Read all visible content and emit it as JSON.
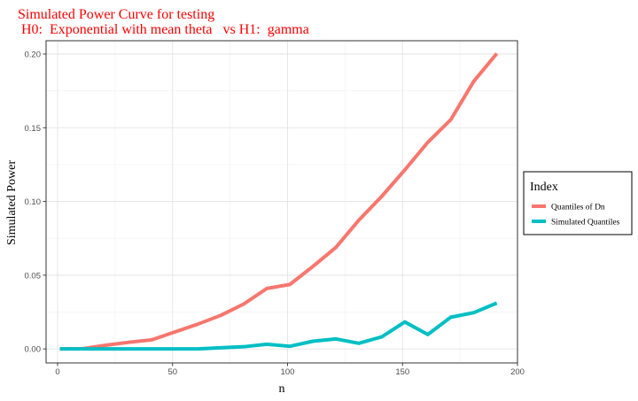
{
  "chart_data": {
    "type": "line",
    "title": "Simulated Power Curve for testing",
    "subtitle": " H0:  Exponential with mean theta   vs H1:  gamma",
    "xlabel": "n",
    "ylabel": "Simulated Power",
    "xlim": [
      -5,
      200
    ],
    "ylim": [
      -0.0095,
      0.209
    ],
    "x_ticks": [
      0,
      50,
      100,
      150,
      200
    ],
    "y_ticks": [
      0.0,
      0.05,
      0.1,
      0.15,
      0.2
    ],
    "x_tick_labels": [
      "0",
      "50",
      "100",
      "150",
      "200"
    ],
    "y_tick_labels": [
      "0.00",
      "0.05",
      "0.10",
      "0.15",
      "0.20"
    ],
    "grid": true,
    "legend": {
      "title": "Index",
      "position": "right"
    },
    "x": [
      1,
      11,
      21,
      31,
      41,
      51,
      61,
      71,
      81,
      91,
      101,
      111,
      121,
      131,
      141,
      151,
      161,
      171,
      181,
      191
    ],
    "series": [
      {
        "name": "Quantiles of Dn",
        "color": "#F8766D",
        "values": [
          0.0,
          0.0002,
          0.0025,
          0.0045,
          0.0062,
          0.0115,
          0.0168,
          0.0228,
          0.0305,
          0.041,
          0.0437,
          0.0559,
          0.0688,
          0.0873,
          0.1035,
          0.1214,
          0.1401,
          0.1555,
          0.1815,
          0.2003
        ]
      },
      {
        "name": "Simulated Quantiles",
        "color": "#00BFC4",
        "values": [
          0.0,
          0.0,
          0.0,
          0.0,
          0.0,
          0.0,
          0.0,
          0.0008,
          0.0015,
          0.0032,
          0.0018,
          0.0052,
          0.0068,
          0.0038,
          0.0082,
          0.0183,
          0.0098,
          0.0215,
          0.0246,
          0.0311
        ]
      }
    ]
  }
}
